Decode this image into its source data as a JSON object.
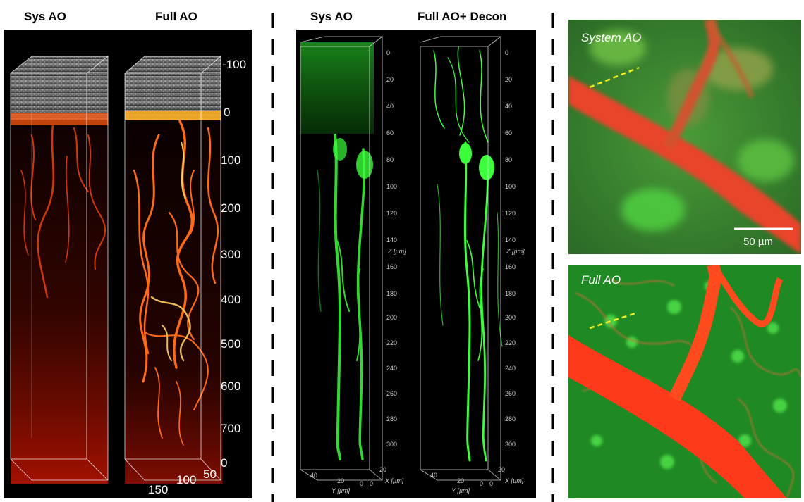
{
  "headers": {
    "sys_ao_left": "Sys AO",
    "full_ao_left": "Full AO",
    "sys_ao_mid": "Sys AO",
    "full_ao_decon": "Full AO+ Decon"
  },
  "vessel_panel": {
    "depth_ticks": [
      "-100",
      "0",
      "100",
      "200",
      "300",
      "400",
      "500",
      "600",
      "700",
      "0"
    ],
    "bottom_ticks": [
      "150",
      "100",
      "50"
    ]
  },
  "neuron_panel": {
    "z_ticks": [
      "0",
      "20",
      "40",
      "60",
      "80",
      "100",
      "120",
      "140",
      "160",
      "180",
      "200",
      "220",
      "240",
      "260",
      "280",
      "300"
    ],
    "z_unit": "Z [µm]",
    "y_ticks": [
      "40",
      "20",
      "0"
    ],
    "y_unit": "Y [µm]",
    "x_ticks": [
      "20",
      "0"
    ],
    "x_unit": "X [µm]"
  },
  "photos": {
    "top_label": "System AO",
    "bottom_label": "Full AO",
    "scale_bar_label": "50 µm"
  },
  "colors": {
    "vessel": "#ff4a10",
    "neuron": "#3cff3c",
    "background": "#000000"
  }
}
